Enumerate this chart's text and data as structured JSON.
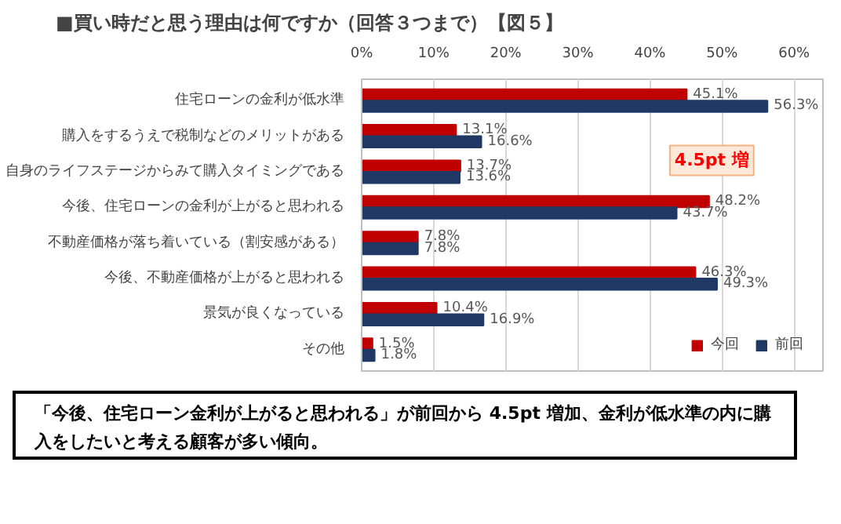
{
  "chart_data": {
    "type": "bar",
    "orientation": "horizontal",
    "title": "■買い時だと思う理由は何ですか（回答３つまで）【図５】",
    "categories": [
      "住宅ローンの金利が低水準",
      "購入をするうえで税制などのメリットがある",
      "自身のライフステージからみて購入タイミングである",
      "今後、住宅ローンの金利が上がると思われる",
      "不動産価格が落ち着いている（割安感がある）",
      "今後、不動産価格が上がると思われる",
      "景気が良くなっている",
      "その他"
    ],
    "series": [
      {
        "name": "今回",
        "color": "#c00000",
        "values": [
          45.1,
          13.1,
          13.7,
          48.2,
          7.8,
          46.3,
          10.4,
          1.5
        ],
        "value_labels": [
          "45.1%",
          "13.1%",
          "13.7%",
          "48.2%",
          "7.8%",
          "46.3%",
          "10.4%",
          "1.5%"
        ]
      },
      {
        "name": "前回",
        "color": "#1f3864",
        "values": [
          56.3,
          16.6,
          13.6,
          43.7,
          7.8,
          49.3,
          16.9,
          1.8
        ],
        "value_labels": [
          "56.3%",
          "16.6%",
          "13.6%",
          "43.7%",
          "7.8%",
          "49.3%",
          "16.9%",
          "1.8%"
        ]
      }
    ],
    "xlim": [
      0,
      64
    ],
    "xticks": [
      {
        "value": 0,
        "label": "0%"
      },
      {
        "value": 10,
        "label": "10%"
      },
      {
        "value": 20,
        "label": "20%"
      },
      {
        "value": 30,
        "label": "30%"
      },
      {
        "value": 40,
        "label": "40%"
      },
      {
        "value": 50,
        "label": "50%"
      },
      {
        "value": 60,
        "label": "60%"
      }
    ],
    "grid": "x",
    "legend": "bottom right",
    "annotations": [
      {
        "text": "4.5pt 増",
        "x": 48.2,
        "y": "今後、住宅ローンの金利が上がると思われる"
      },
      "「今後、住宅ローン金利が上がると思われる」が前回から 4.5pt 増加、金利が低水準の内に購入をしたいと考える顧客が多い傾向。"
    ]
  }
}
